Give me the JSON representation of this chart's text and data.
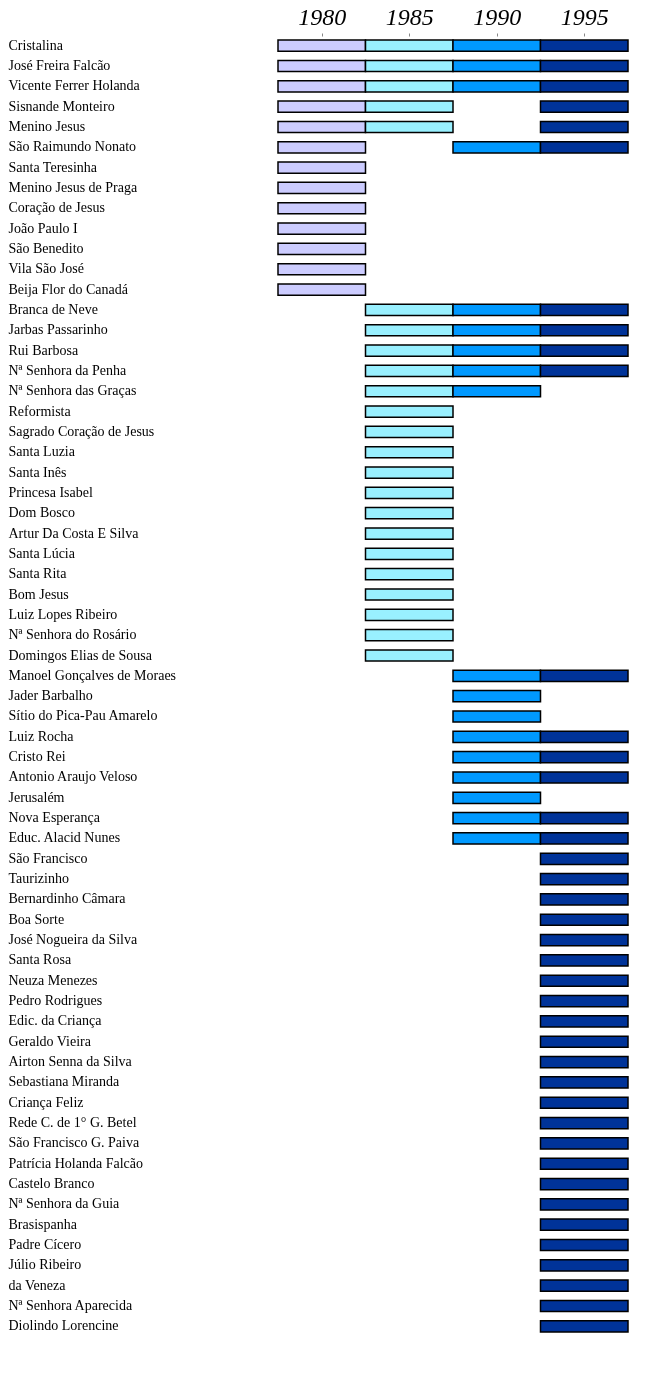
{
  "chart_data": {
    "type": "bar",
    "orientation": "horizontal",
    "grid": false,
    "xlim": [
      1977.5,
      1997.5
    ],
    "xticks": [
      1980,
      1985,
      1990,
      1995
    ],
    "categories": [
      "Cristalina",
      "José Freira Falcão",
      "Vicente Ferrer Holanda",
      "Sisnande Monteiro",
      "Menino Jesus",
      "São Raimundo Nonato",
      "Santa Teresinha",
      "Menino Jesus de Praga",
      "Coração de Jesus",
      "João Paulo I",
      "São Benedito",
      "Vila São José",
      "Beija Flor do Canadá",
      "Branca de Neve",
      "Jarbas Passarinho",
      "Rui Barbosa",
      "Nª Senhora da Penha",
      "Nª Senhora das Graças",
      "Reformista",
      "Sagrado Coração de Jesus",
      "Santa Luzia",
      "Santa Inês",
      "Princesa Isabel",
      "Dom Bosco",
      "Artur Da Costa E Silva",
      "Santa Lúcia",
      "Santa Rita",
      "Bom Jesus",
      "Luiz Lopes Ribeiro",
      "Nª Senhora do Rosário",
      "Domingos Elias de Sousa",
      "Manoel Gonçalves de Moraes",
      "Jader Barbalho",
      "Sítio do Pica-Pau Amarelo",
      "Luiz Rocha",
      "Cristo Rei",
      "Antonio Araujo Veloso",
      "Jerusalém",
      "Nova Esperança",
      "Educ. Alacid Nunes",
      "São Francisco",
      "Taurizinho",
      "Bernardinho Câmara",
      "Boa Sorte",
      "José Nogueira da Silva",
      "Santa Rosa",
      "Neuza Menezes",
      "Pedro Rodrigues",
      "Edic. da Criança",
      "Geraldo Vieira",
      "Airton Senna da Silva",
      "Sebastiana Miranda",
      "Criança Feliz",
      "Rede C. de 1° G. Betel",
      "São Francisco G. Paiva",
      "Patrícia Holanda Falcão",
      "Castelo Branco",
      "Nª Senhora da Guia",
      "Brasispanha",
      "Padre Cícero",
      "Júlio Ribeiro",
      "da Veneza",
      "Nª Senhora Aparecida",
      "Diolindo Lorencine"
    ],
    "series": [
      {
        "color": "#ccccff",
        "base": [
          1977.5,
          1977.5,
          1977.5,
          1977.5,
          1977.5,
          1977.5,
          1977.5,
          1977.5,
          1977.5,
          1977.5,
          1977.5,
          1977.5,
          1977.5,
          null,
          null,
          null,
          null,
          null,
          null,
          null,
          null,
          null,
          null,
          null,
          null,
          null,
          null,
          null,
          null,
          null,
          null,
          null,
          null,
          null,
          null,
          null,
          null,
          null,
          null,
          null,
          null,
          null,
          null,
          null,
          null,
          null,
          null,
          null,
          null,
          null,
          null,
          null,
          null,
          null,
          null,
          null,
          null,
          null,
          null,
          null,
          null,
          null,
          null,
          null
        ],
        "values": [
          5,
          5,
          5,
          5,
          5,
          5,
          5,
          5,
          5,
          5,
          5,
          5,
          5,
          null,
          null,
          null,
          null,
          null,
          null,
          null,
          null,
          null,
          null,
          null,
          null,
          null,
          null,
          null,
          null,
          null,
          null,
          null,
          null,
          null,
          null,
          null,
          null,
          null,
          null,
          null,
          null,
          null,
          null,
          null,
          null,
          null,
          null,
          null,
          null,
          null,
          null,
          null,
          null,
          null,
          null,
          null,
          null,
          null,
          null,
          null,
          null,
          null,
          null,
          null
        ]
      },
      {
        "color": "#99f0ff",
        "base": [
          1982.5,
          1982.5,
          1982.5,
          1982.5,
          1982.5,
          null,
          null,
          null,
          null,
          null,
          null,
          null,
          null,
          1982.5,
          1982.5,
          1982.5,
          1982.5,
          1982.5,
          1982.5,
          1982.5,
          1982.5,
          1982.5,
          1982.5,
          1982.5,
          1982.5,
          1982.5,
          1982.5,
          1982.5,
          1982.5,
          1982.5,
          1982.5,
          null,
          null,
          null,
          null,
          null,
          null,
          null,
          null,
          null,
          null,
          null,
          null,
          null,
          null,
          null,
          null,
          null,
          null,
          null,
          null,
          null,
          null,
          null,
          null,
          null,
          null,
          null,
          null,
          null,
          null,
          null,
          null,
          null
        ],
        "values": [
          5,
          5,
          5,
          5,
          5,
          null,
          null,
          null,
          null,
          null,
          null,
          null,
          null,
          5,
          5,
          5,
          5,
          5,
          5,
          5,
          5,
          5,
          5,
          5,
          5,
          5,
          5,
          5,
          5,
          5,
          5,
          null,
          null,
          null,
          null,
          null,
          null,
          null,
          null,
          null,
          null,
          null,
          null,
          null,
          null,
          null,
          null,
          null,
          null,
          null,
          null,
          null,
          null,
          null,
          null,
          null,
          null,
          null,
          null,
          null,
          null,
          null,
          null,
          null
        ]
      },
      {
        "color": "#0099ff",
        "base": [
          1987.5,
          1987.5,
          1987.5,
          null,
          null,
          1987.5,
          null,
          null,
          null,
          null,
          null,
          null,
          null,
          1987.5,
          1987.5,
          1987.5,
          1987.5,
          1987.5,
          null,
          null,
          null,
          null,
          null,
          null,
          null,
          null,
          null,
          null,
          null,
          null,
          null,
          1987.5,
          1987.5,
          1987.5,
          1987.5,
          1987.5,
          1987.5,
          1987.5,
          1987.5,
          1987.5,
          null,
          null,
          null,
          null,
          null,
          null,
          null,
          null,
          null,
          null,
          null,
          null,
          null,
          null,
          null,
          null,
          null,
          null,
          null,
          null,
          null,
          null,
          null,
          null
        ],
        "values": [
          5,
          5,
          5,
          null,
          null,
          5,
          null,
          null,
          null,
          null,
          null,
          null,
          null,
          5,
          5,
          5,
          5,
          5,
          null,
          null,
          null,
          null,
          null,
          null,
          null,
          null,
          null,
          null,
          null,
          null,
          null,
          5,
          5,
          5,
          5,
          5,
          5,
          5,
          5,
          5,
          null,
          null,
          null,
          null,
          null,
          null,
          null,
          null,
          null,
          null,
          null,
          null,
          null,
          null,
          null,
          null,
          null,
          null,
          null,
          null,
          null,
          null,
          null,
          null
        ]
      },
      {
        "color": "#003399",
        "base": [
          1992.5,
          1992.5,
          1992.5,
          1992.5,
          1992.5,
          1992.5,
          null,
          null,
          null,
          null,
          null,
          null,
          null,
          1992.5,
          1992.5,
          1992.5,
          1992.5,
          null,
          null,
          null,
          null,
          null,
          null,
          null,
          null,
          null,
          null,
          null,
          null,
          null,
          null,
          1992.5,
          null,
          null,
          1992.5,
          1992.5,
          1992.5,
          null,
          1992.5,
          1992.5,
          1992.5,
          1992.5,
          1992.5,
          1992.5,
          1992.5,
          1992.5,
          1992.5,
          1992.5,
          1992.5,
          1992.5,
          1992.5,
          1992.5,
          1992.5,
          1992.5,
          1992.5,
          1992.5,
          1992.5,
          1992.5,
          1992.5,
          1992.5,
          1992.5,
          1992.5,
          1992.5,
          1992.5
        ],
        "values": [
          5,
          5,
          5,
          5,
          5,
          5,
          null,
          null,
          null,
          null,
          null,
          null,
          null,
          5,
          5,
          5,
          5,
          null,
          null,
          null,
          null,
          null,
          null,
          null,
          null,
          null,
          null,
          null,
          null,
          null,
          null,
          5,
          null,
          null,
          5,
          5,
          5,
          null,
          5,
          5,
          5,
          5,
          5,
          5,
          5,
          5,
          5,
          5,
          5,
          5,
          5,
          5,
          5,
          5,
          5,
          5,
          5,
          5,
          5,
          5,
          5,
          5,
          5,
          5
        ]
      }
    ]
  }
}
